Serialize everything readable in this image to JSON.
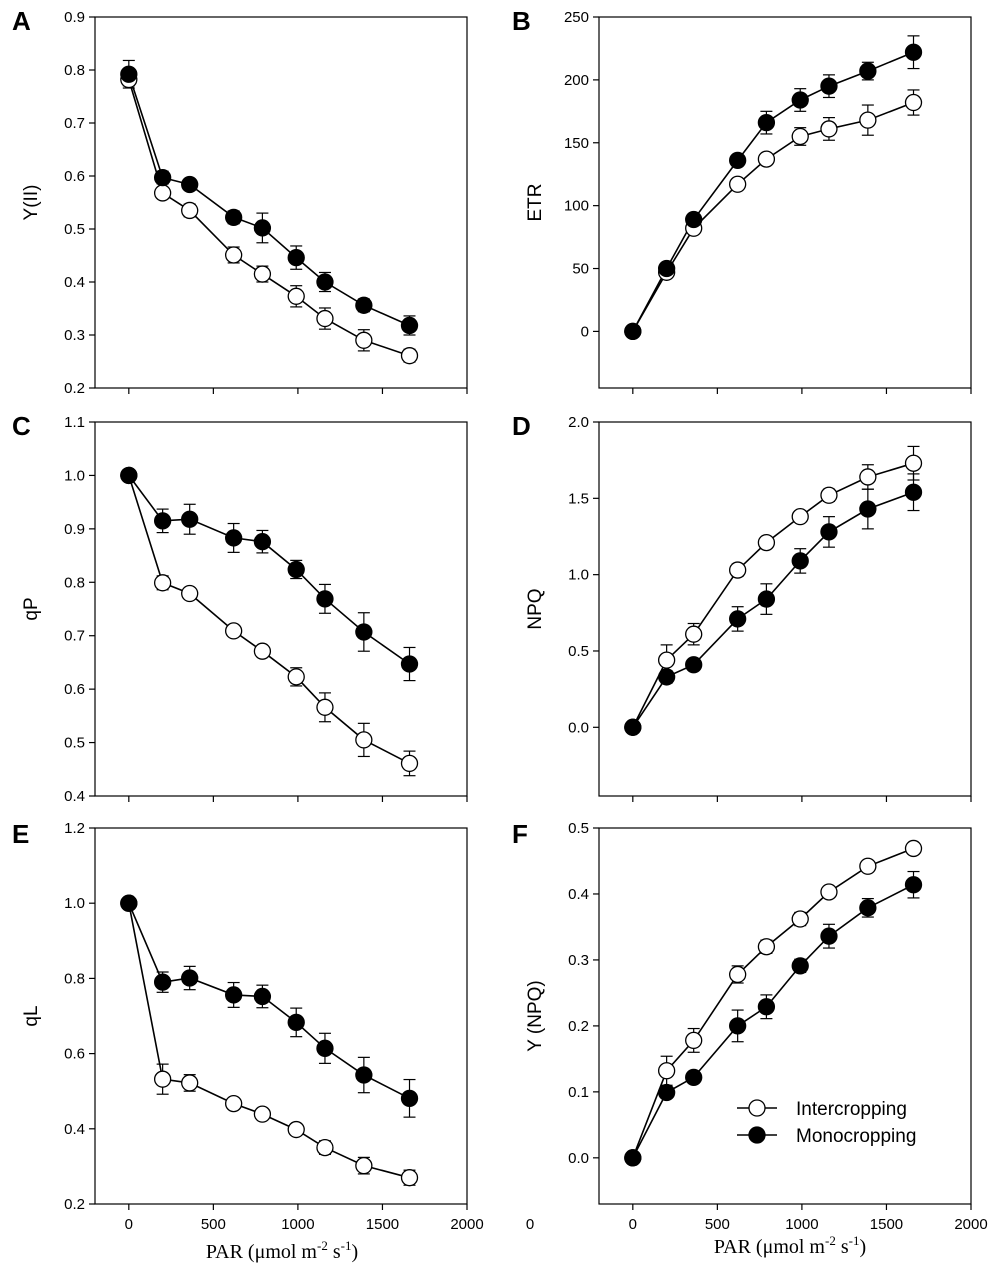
{
  "figure": {
    "x_axis_label_left": "PAR (μmol m-2 s-1)",
    "x_axis_label_right": "PAR (μmol m-2 s-1)",
    "stray_tick": "0",
    "legend": {
      "entries": [
        "Intercropping",
        "Monocropping"
      ]
    },
    "colors": {
      "intercropping_fill": "#ffffff",
      "monocropping_fill": "#000000",
      "stroke": "#000000"
    }
  },
  "chart_data": [
    {
      "panel": "A",
      "type": "line",
      "ylabel": "Y(II)",
      "xlim": [
        -200,
        2000
      ],
      "ylim": [
        0.2,
        0.9
      ],
      "yticks": [
        "0.2",
        "0.3",
        "0.4",
        "0.5",
        "0.6",
        "0.7",
        "0.8",
        "0.9"
      ],
      "xticks": [],
      "x": [
        0,
        200,
        360,
        620,
        790,
        990,
        1160,
        1390,
        1660
      ],
      "series": [
        {
          "name": "Intercropping",
          "values": [
            0.782,
            0.568,
            0.535,
            0.451,
            0.415,
            0.373,
            0.331,
            0.29,
            0.261
          ],
          "errors": [
            0.012,
            0.01,
            0.012,
            0.015,
            0.015,
            0.02,
            0.02,
            0.02,
            0.012
          ]
        },
        {
          "name": "Monocropping",
          "values": [
            0.792,
            0.597,
            0.584,
            0.522,
            0.502,
            0.446,
            0.4,
            0.356,
            0.318
          ],
          "errors": [
            0.026,
            0.012,
            0.01,
            0.012,
            0.028,
            0.022,
            0.018,
            0.012,
            0.018
          ]
        }
      ]
    },
    {
      "panel": "B",
      "type": "line",
      "ylabel": "ETR",
      "xlim": [
        -200,
        2000
      ],
      "ylim": [
        -45,
        250
      ],
      "yticks": [
        "0",
        "50",
        "100",
        "150",
        "200",
        "250"
      ],
      "xticks": [],
      "x": [
        0,
        200,
        360,
        620,
        790,
        990,
        1160,
        1390,
        1660
      ],
      "series": [
        {
          "name": "Intercropping",
          "values": [
            0,
            47,
            82,
            117,
            137,
            155,
            161,
            168,
            182
          ],
          "errors": [
            0,
            3,
            3,
            3,
            4,
            7,
            9,
            12,
            10
          ]
        },
        {
          "name": "Monocropping",
          "values": [
            0,
            50,
            89,
            136,
            166,
            184,
            195,
            207,
            222
          ],
          "errors": [
            0,
            3,
            3,
            3,
            9,
            9,
            9,
            7,
            13
          ]
        }
      ]
    },
    {
      "panel": "C",
      "type": "line",
      "ylabel": "qP",
      "xlim": [
        -200,
        2000
      ],
      "ylim": [
        0.4,
        1.1
      ],
      "yticks": [
        "0.4",
        "0.5",
        "0.6",
        "0.7",
        "0.8",
        "0.9",
        "1.0",
        "1.1"
      ],
      "xticks": [],
      "x": [
        0,
        200,
        360,
        620,
        790,
        990,
        1160,
        1390,
        1660
      ],
      "series": [
        {
          "name": "Intercropping",
          "values": [
            1.0,
            0.799,
            0.779,
            0.709,
            0.671,
            0.623,
            0.566,
            0.505,
            0.461
          ],
          "errors": [
            0,
            0.013,
            0.008,
            0.006,
            0.008,
            0.017,
            0.027,
            0.031,
            0.023
          ]
        },
        {
          "name": "Monocropping",
          "values": [
            1.0,
            0.915,
            0.918,
            0.883,
            0.876,
            0.824,
            0.769,
            0.707,
            0.647
          ],
          "errors": [
            0,
            0.022,
            0.028,
            0.027,
            0.021,
            0.017,
            0.027,
            0.036,
            0.031
          ]
        }
      ]
    },
    {
      "panel": "D",
      "type": "line",
      "ylabel": "NPQ",
      "xlim": [
        -200,
        2000
      ],
      "ylim": [
        -0.45,
        2.0
      ],
      "yticks": [
        "0.0",
        "0.5",
        "1.0",
        "1.5",
        "2.0"
      ],
      "xticks": [],
      "x": [
        0,
        200,
        360,
        620,
        790,
        990,
        1160,
        1390,
        1660
      ],
      "series": [
        {
          "name": "Intercropping",
          "values": [
            0.0,
            0.44,
            0.61,
            1.03,
            1.21,
            1.38,
            1.52,
            1.64,
            1.73
          ],
          "errors": [
            0,
            0.1,
            0.07,
            0.04,
            0.03,
            0.03,
            0.04,
            0.08,
            0.11
          ]
        },
        {
          "name": "Monocropping",
          "values": [
            0.0,
            0.33,
            0.41,
            0.71,
            0.84,
            1.09,
            1.28,
            1.43,
            1.54
          ],
          "errors": [
            0,
            0.04,
            0.03,
            0.08,
            0.1,
            0.08,
            0.1,
            0.13,
            0.12
          ]
        }
      ]
    },
    {
      "panel": "E",
      "type": "line",
      "ylabel": "qL",
      "xlim": [
        -200,
        2000
      ],
      "ylim": [
        0.2,
        1.2
      ],
      "yticks": [
        "0.2",
        "0.4",
        "0.6",
        "0.8",
        "1.0",
        "1.2"
      ],
      "xticks": [
        "0",
        "500",
        "1000",
        "1500",
        "2000"
      ],
      "x": [
        0,
        200,
        360,
        620,
        790,
        990,
        1160,
        1390,
        1660
      ],
      "series": [
        {
          "name": "Intercropping",
          "values": [
            1.0,
            0.532,
            0.522,
            0.467,
            0.439,
            0.398,
            0.35,
            0.302,
            0.27
          ],
          "errors": [
            0,
            0.04,
            0.022,
            0.012,
            0.012,
            0.012,
            0.018,
            0.022,
            0.02
          ]
        },
        {
          "name": "Monocropping",
          "values": [
            1.0,
            0.79,
            0.801,
            0.756,
            0.752,
            0.683,
            0.614,
            0.543,
            0.481
          ],
          "errors": [
            0,
            0.027,
            0.031,
            0.033,
            0.03,
            0.038,
            0.04,
            0.047,
            0.05
          ]
        }
      ]
    },
    {
      "panel": "F",
      "type": "line",
      "ylabel": "Y (NPQ)",
      "xlim": [
        -200,
        2000
      ],
      "ylim": [
        -0.07,
        0.5
      ],
      "yticks": [
        "0.0",
        "0.1",
        "0.2",
        "0.3",
        "0.4",
        "0.5"
      ],
      "xticks": [
        "0",
        "500",
        "1000",
        "1500",
        "2000"
      ],
      "x": [
        0,
        200,
        360,
        620,
        790,
        990,
        1160,
        1390,
        1660
      ],
      "series": [
        {
          "name": "Intercropping",
          "values": [
            0.0,
            0.132,
            0.178,
            0.278,
            0.32,
            0.362,
            0.403,
            0.442,
            0.469
          ],
          "errors": [
            0,
            0.022,
            0.018,
            0.013,
            0.01,
            0.01,
            0.008,
            0.008,
            0.007
          ]
        },
        {
          "name": "Monocropping",
          "values": [
            0.0,
            0.099,
            0.122,
            0.2,
            0.229,
            0.291,
            0.336,
            0.379,
            0.414
          ],
          "errors": [
            0,
            0.008,
            0.006,
            0.024,
            0.018,
            0.01,
            0.018,
            0.014,
            0.02
          ]
        }
      ]
    }
  ]
}
